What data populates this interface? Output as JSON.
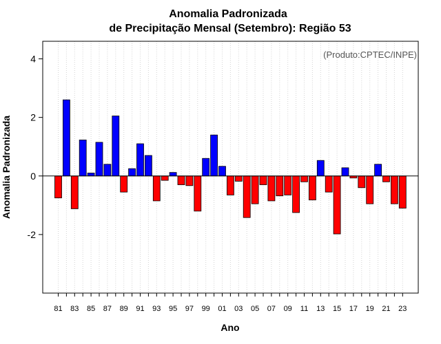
{
  "chart_data": {
    "type": "bar",
    "title_line1": "Anomalia Padronizada",
    "title_line2": "de Precipitação Mensal (Setembro): Região 53",
    "xlabel": "Ano",
    "ylabel": "Anomalia Padronizada",
    "credit": "(Produto:CPTEC/INPE)",
    "ylim": [
      -4,
      4.6
    ],
    "yticks": [
      -2,
      0,
      2,
      4
    ],
    "ytick_labels": [
      "-2",
      "0",
      "2",
      "4"
    ],
    "grid": "vertical dotted",
    "colors": {
      "positive": "#0000ff",
      "negative": "#ff0000",
      "border": "#000000",
      "grid": "#d3d3d3"
    },
    "categories": [
      "81",
      "82",
      "83",
      "84",
      "85",
      "86",
      "87",
      "88",
      "89",
      "90",
      "91",
      "92",
      "93",
      "94",
      "95",
      "96",
      "97",
      "98",
      "99",
      "00",
      "01",
      "02",
      "03",
      "04",
      "05",
      "06",
      "07",
      "08",
      "09",
      "10",
      "11",
      "12",
      "13",
      "14",
      "15",
      "16",
      "17",
      "18",
      "19",
      "20",
      "21",
      "22",
      "23"
    ],
    "xtick_labels": [
      "81",
      "83",
      "85",
      "87",
      "89",
      "91",
      "93",
      "95",
      "97",
      "99",
      "01",
      "03",
      "05",
      "07",
      "09",
      "11",
      "13",
      "15",
      "17",
      "19",
      "21",
      "23"
    ],
    "values": [
      -0.75,
      2.6,
      -1.12,
      1.23,
      0.1,
      1.15,
      0.4,
      2.05,
      -0.55,
      0.25,
      1.1,
      0.7,
      -0.85,
      -0.15,
      0.12,
      -0.3,
      -0.33,
      -1.2,
      0.6,
      1.4,
      0.33,
      -0.65,
      -0.18,
      -1.42,
      -0.95,
      -0.3,
      -0.85,
      -0.68,
      -0.65,
      -1.25,
      -0.2,
      -0.82,
      0.53,
      -0.55,
      -1.98,
      0.28,
      -0.07,
      -0.4,
      -0.95,
      0.4,
      -0.2,
      -0.95,
      -1.1
    ]
  }
}
